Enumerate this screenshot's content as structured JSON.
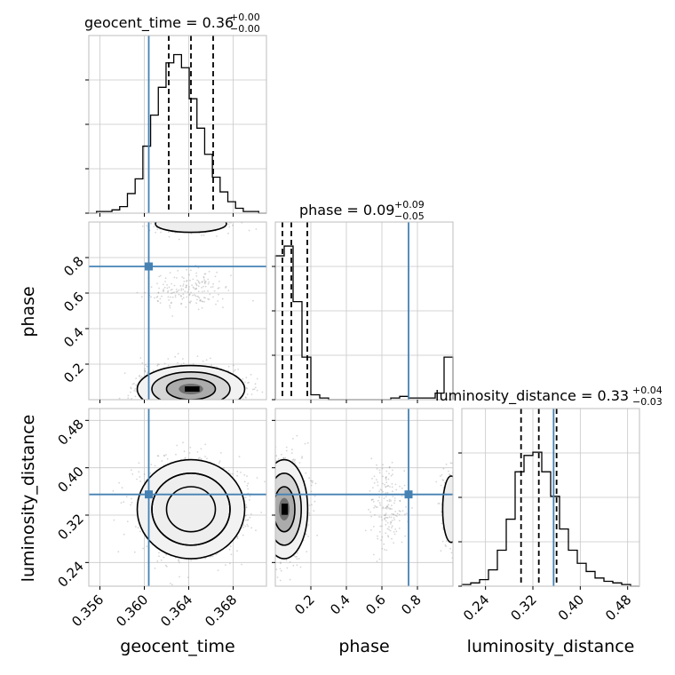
{
  "chart_data": {
    "type": "corner",
    "parameters": [
      {
        "name": "geocent_time",
        "label": "geocent_time",
        "title_main": "geocent_time = 0.36",
        "title_sup": "+0.00",
        "title_sub": "−0.00",
        "range": [
          0.355,
          0.371
        ],
        "ticks": [
          0.356,
          0.36,
          0.364,
          0.368
        ],
        "tick_labels": [
          "0.356",
          "0.360",
          "0.364",
          "0.368"
        ],
        "injection": 0.3604,
        "quantiles": [
          0.3622,
          0.3642,
          0.3662
        ],
        "hist_counts": [
          0,
          1,
          1,
          2,
          4,
          12,
          21,
          41,
          60,
          77,
          92,
          97,
          89,
          70,
          52,
          36,
          22,
          13,
          7,
          3,
          1,
          1,
          0
        ],
        "hist_ymax": 100
      },
      {
        "name": "phase",
        "label": "phase",
        "title_main": "phase = 0.09",
        "title_sup": "+0.09",
        "title_sub": "−0.05",
        "range": [
          0.0,
          1.0
        ],
        "ticks": [
          0.2,
          0.4,
          0.6,
          0.8
        ],
        "tick_labels": [
          "0.2",
          "0.4",
          "0.6",
          "0.8"
        ],
        "injection": 0.75,
        "quantiles": [
          0.04,
          0.09,
          0.18
        ],
        "hist_counts": [
          88,
          94,
          60,
          26,
          3,
          1,
          0,
          0,
          0,
          0,
          0,
          0,
          0,
          1,
          2,
          1,
          1,
          1,
          4,
          26
        ],
        "hist_ymax": 100
      },
      {
        "name": "luminosity_distance",
        "label": "luminosity_distance",
        "title_main": "luminosity_distance = 0.33",
        "title_sup": "+0.04",
        "title_sub": "−0.03",
        "range": [
          0.2,
          0.5
        ],
        "ticks": [
          0.24,
          0.32,
          0.4,
          0.48
        ],
        "tick_labels": [
          "0.24",
          "0.32",
          "0.40",
          "0.48"
        ],
        "injection": 0.355,
        "quantiles": [
          0.3,
          0.33,
          0.36
        ],
        "hist_counts": [
          1,
          2,
          4,
          10,
          22,
          41,
          70,
          80,
          82,
          70,
          55,
          35,
          22,
          14,
          9,
          5,
          3,
          2,
          1,
          0
        ],
        "hist_ymax": 100
      }
    ],
    "grid": true
  }
}
